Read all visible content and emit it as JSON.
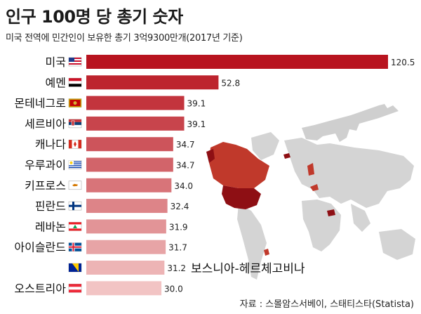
{
  "title": "인구 100명 당 총기 숫자",
  "subtitle": "미국 전역에 민간인이 보유한 총기 3억9300만개(2017년 기준)",
  "source": "자료 : 스몰암스서베이, 스태티스타(Statista)",
  "annotation": "보스니아-헤르체고비나",
  "colors": {
    "bar_dark": "#b8141f",
    "bar_light": "#f2c4c4",
    "map_gray": "#d4d4d4",
    "map_red": "#c0392b",
    "map_dark": "#8e0f14",
    "silhouette": "#cfcfcf"
  },
  "chart_data": {
    "type": "bar",
    "orientation": "horizontal",
    "categories": [
      "미국",
      "예멘",
      "몬테네그로",
      "세르비아",
      "캐나다",
      "우루과이",
      "키프로스",
      "핀란드",
      "레바논",
      "아이슬란드",
      "",
      "오스트리아"
    ],
    "values": [
      120.5,
      52.8,
      39.1,
      39.1,
      34.7,
      34.7,
      34.0,
      32.4,
      31.9,
      31.7,
      31.2,
      30.0
    ],
    "value_labels": [
      "120.5",
      "52.8",
      "39.1",
      "39.1",
      "34.7",
      "34.7",
      "34.0",
      "32.4",
      "31.9",
      "31.7",
      "31.2",
      "30.0"
    ],
    "flags": [
      "us-flag-icon",
      "yemen-flag-icon",
      "montenegro-flag-icon",
      "serbia-flag-icon",
      "canada-flag-icon",
      "uruguay-flag-icon",
      "cyprus-flag-icon",
      "finland-flag-icon",
      "lebanon-flag-icon",
      "iceland-flag-icon",
      "bosnia-flag-icon",
      "austria-flag-icon"
    ],
    "xlim": [
      0,
      120.5
    ],
    "grid": false
  }
}
